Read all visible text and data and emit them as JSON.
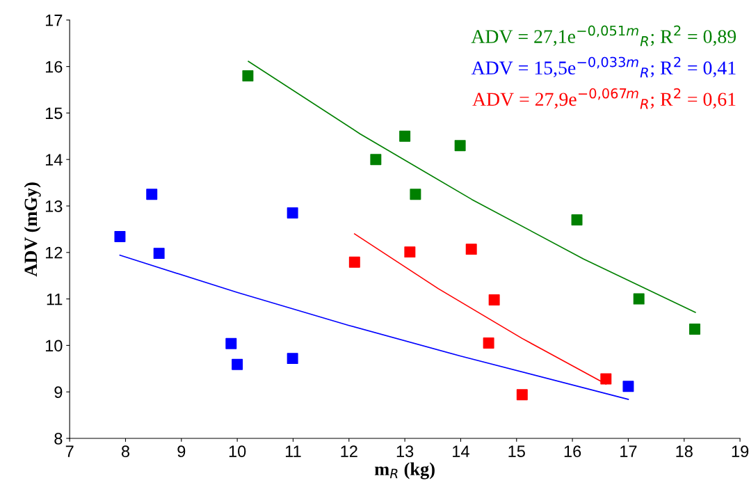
{
  "chart_data": {
    "type": "scatter",
    "xlabel": "m$_{R}$ (kg)",
    "ylabel": "ADV (mGy)",
    "xlim": [
      7,
      19
    ],
    "xticks": [
      7,
      8,
      9,
      10,
      11,
      12,
      13,
      14,
      15,
      16,
      17,
      18,
      19
    ],
    "ylim": [
      8,
      17
    ],
    "yticks": [
      8,
      9,
      10,
      11,
      12,
      13,
      14,
      15,
      16,
      17
    ],
    "grid": false,
    "marker": "square",
    "series": [
      {
        "color": "#008000",
        "x": [
          10.19,
          13.0,
          12.48,
          13.99,
          13.19,
          16.08,
          17.19,
          18.19
        ],
        "values": [
          15.8,
          14.5,
          14.0,
          14.3,
          13.25,
          12.7,
          11.0,
          10.35
        ]
      },
      {
        "color": "#0000ff",
        "x": [
          7.9,
          8.47,
          8.6,
          10.99,
          9.89,
          10.0,
          10.99,
          17.0
        ],
        "values": [
          12.34,
          13.25,
          11.98,
          12.85,
          10.04,
          9.59,
          9.72,
          9.12
        ]
      },
      {
        "color": "#ff0000",
        "x": [
          12.1,
          13.09,
          14.19,
          14.6,
          14.5,
          15.1,
          16.6
        ],
        "values": [
          11.79,
          12.01,
          12.07,
          10.98,
          10.05,
          8.94,
          9.28
        ]
      },
      {
        "type": "line",
        "marker": "none",
        "name": "ADV = 27,1e$^{−0,051m}$$_{R}$; R$^{2}$ = 0,89",
        "color": "#008000",
        "x": [
          10.2,
          12.2,
          14.2,
          16.2,
          18.2
        ],
        "values": [
          16.11,
          14.55,
          13.14,
          11.86,
          10.71
        ]
      },
      {
        "type": "line",
        "marker": "none",
        "name": "ADV = 15,5e$^{−0,033m}$$_{R}$; R$^{2}$ = 0,41",
        "color": "#0000ff",
        "x": [
          7.9,
          10,
          12,
          14,
          17
        ],
        "values": [
          11.94,
          11.14,
          10.43,
          9.77,
          8.84
        ]
      },
      {
        "type": "line",
        "marker": "none",
        "name": "ADV = 27,9e$^{−0,067m}$$_{R}$; R$^{2}$ = 0,61",
        "color": "#ff0000",
        "x": [
          12.1,
          13.6,
          15.1,
          16.6
        ],
        "values": [
          12.4,
          11.22,
          10.15,
          9.17
        ]
      }
    ]
  }
}
